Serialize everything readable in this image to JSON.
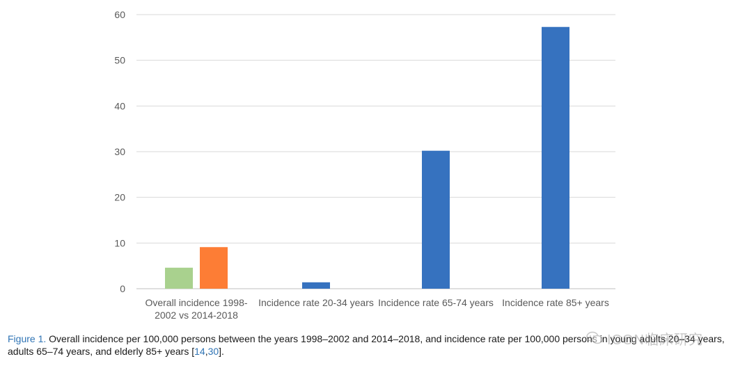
{
  "chart_data": {
    "type": "bar",
    "categories": [
      [
        "Overall incidence 1998-",
        "2002 vs 2014-2018"
      ],
      [
        "Incidence rate 20-34 years"
      ],
      [
        "Incidence rate 65-74 years"
      ],
      [
        "Incidence rate 85+ years"
      ]
    ],
    "bars": [
      {
        "category": 0,
        "value": 4.6,
        "color": "#a9d18e"
      },
      {
        "category": 0,
        "value": 9.1,
        "color": "#fd7d35"
      },
      {
        "category": 1,
        "value": 1.4,
        "color": "#3672bf"
      },
      {
        "category": 2,
        "value": 30.2,
        "color": "#3672bf"
      },
      {
        "category": 3,
        "value": 57.3,
        "color": "#3672bf"
      }
    ],
    "ylim": [
      0,
      60
    ],
    "yticks": [
      0,
      10,
      20,
      30,
      40,
      50,
      60
    ],
    "grid": true,
    "title": "",
    "xlabel": "",
    "ylabel": ""
  },
  "caption": {
    "figure_label": "Figure 1.",
    "text_before_ref": " Overall incidence per 100,000 persons between the years 1998–2002 and 2014–2018, and incidence rate per 100,000 persons in young adults 20–34 years, adults 65–74 years, and elderly 85+ years [",
    "ref_a": "14",
    "ref_sep": ",",
    "ref_b": "30",
    "text_after_ref": "]."
  },
  "watermark": {
    "text": "ICON临床研究",
    "icon": "wechat-icon"
  }
}
